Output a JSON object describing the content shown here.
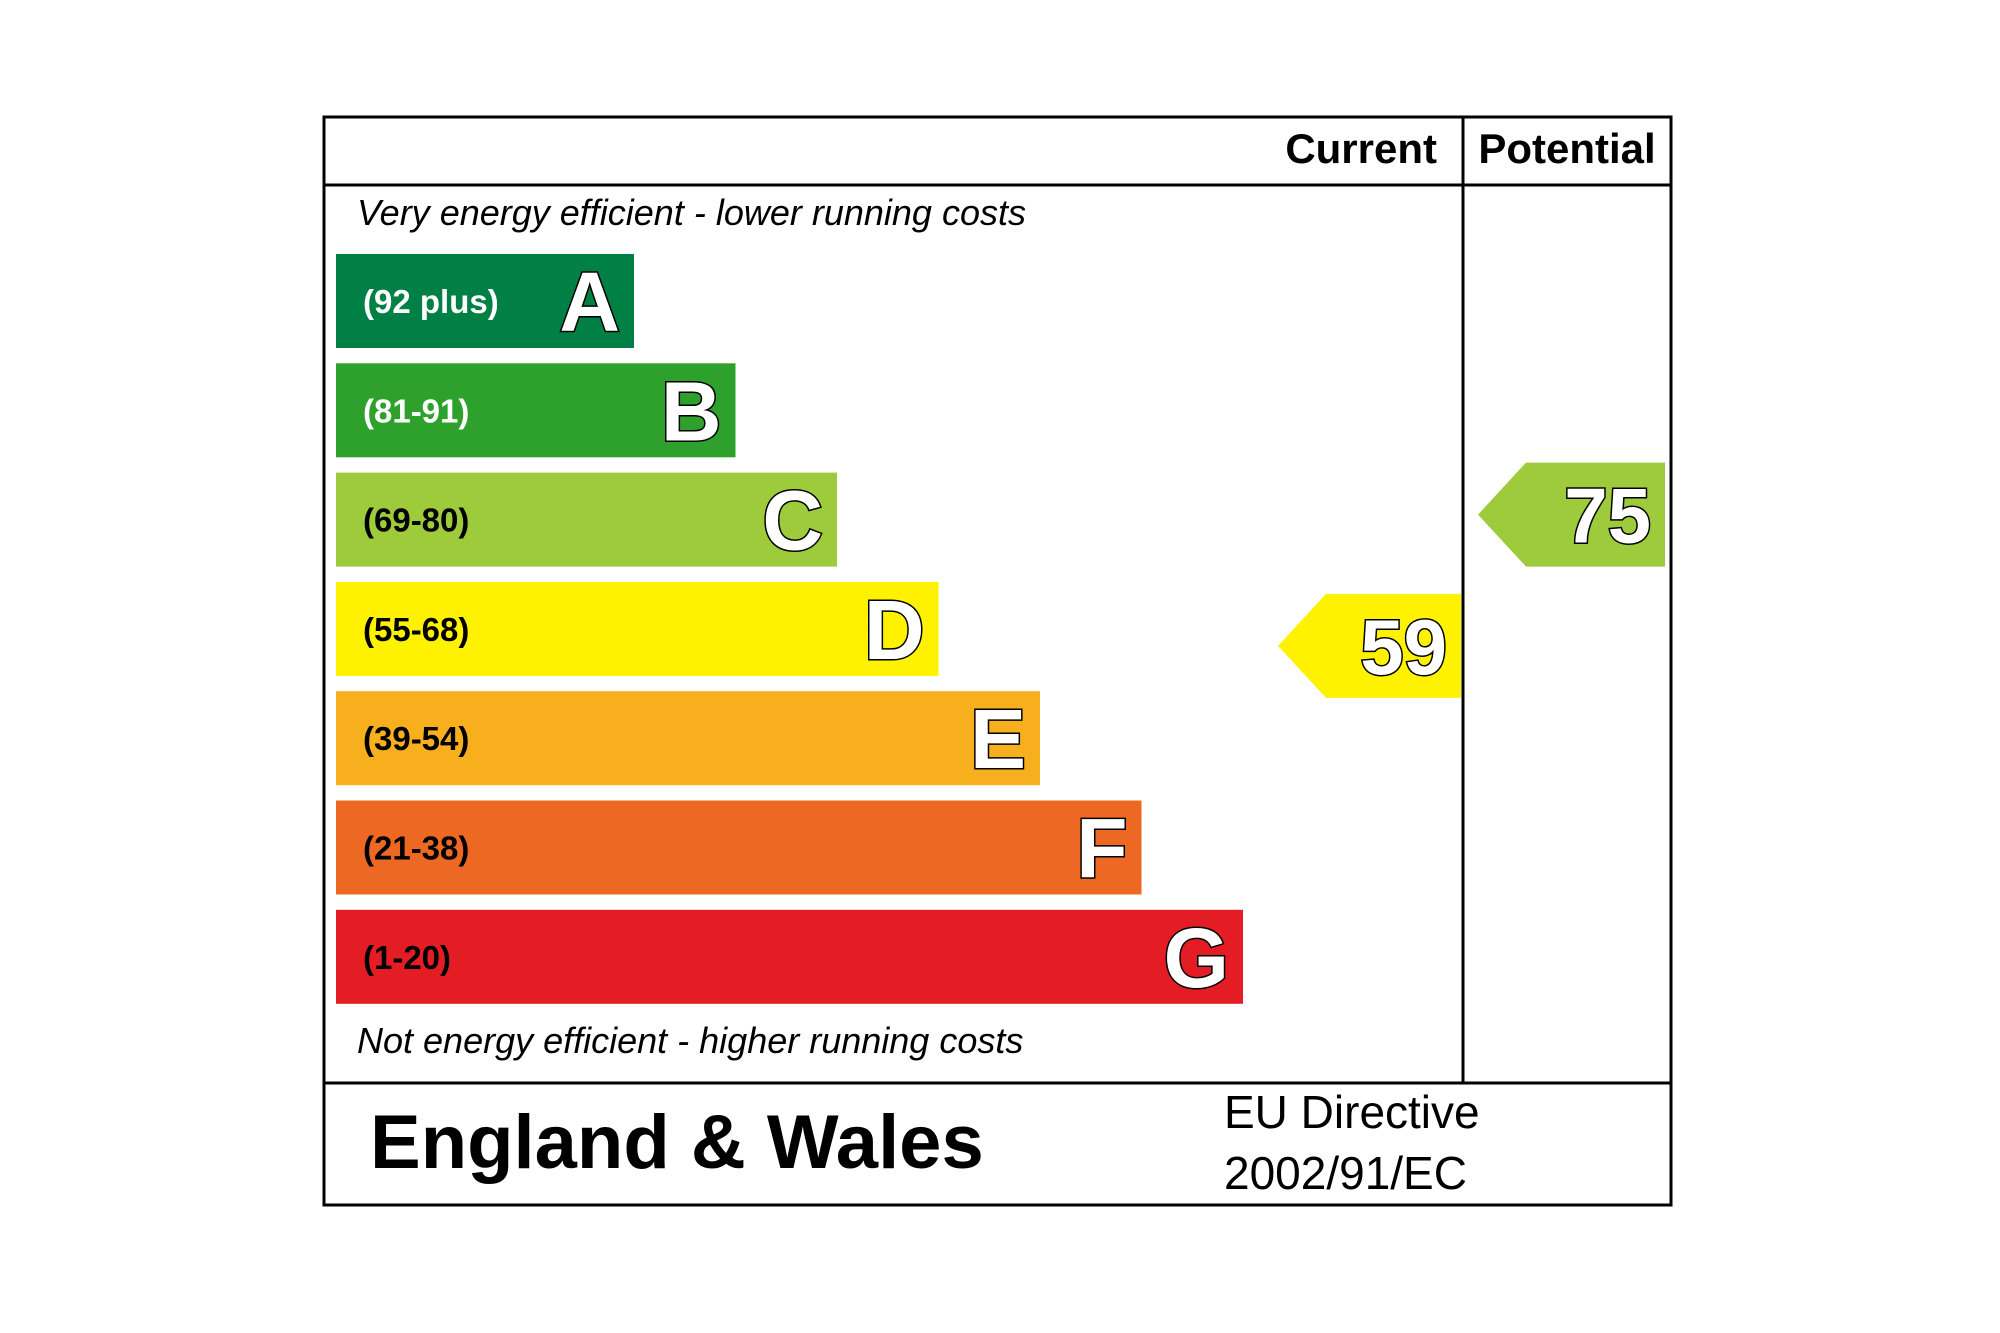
{
  "chart_data": {
    "type": "bar",
    "header": {
      "current": "Current",
      "potential": "Potential"
    },
    "top_note": "Very energy efficient - lower running costs",
    "bottom_note": "Not energy efficient - higher running costs",
    "bands": [
      {
        "letter": "A",
        "range": "(92 plus)",
        "min": 92,
        "color": "#008044",
        "text_color": "#ffffff"
      },
      {
        "letter": "B",
        "range": "(81-91)",
        "min": 81,
        "color": "#2ea12d",
        "text_color": "#ffffff"
      },
      {
        "letter": "C",
        "range": "(69-80)",
        "min": 69,
        "color": "#9dcb3c",
        "text_color": "#000000"
      },
      {
        "letter": "D",
        "range": "(55-68)",
        "min": 55,
        "color": "#fff200",
        "text_color": "#000000"
      },
      {
        "letter": "E",
        "range": "(39-54)",
        "min": 39,
        "color": "#f7af1d",
        "text_color": "#000000"
      },
      {
        "letter": "F",
        "range": "(21-38)",
        "min": 21,
        "color": "#ed6823",
        "text_color": "#000000"
      },
      {
        "letter": "G",
        "range": "(1-20)",
        "min": 1,
        "color": "#e31d23",
        "text_color": "#000000"
      }
    ],
    "current": {
      "value": 59,
      "band": "D",
      "color": "#fff200"
    },
    "potential": {
      "value": 75,
      "band": "C",
      "color": "#9dcb3c"
    }
  },
  "footer": {
    "region": "England & Wales",
    "directive_line1": "EU Directive",
    "directive_line2": "2002/91/EC"
  }
}
